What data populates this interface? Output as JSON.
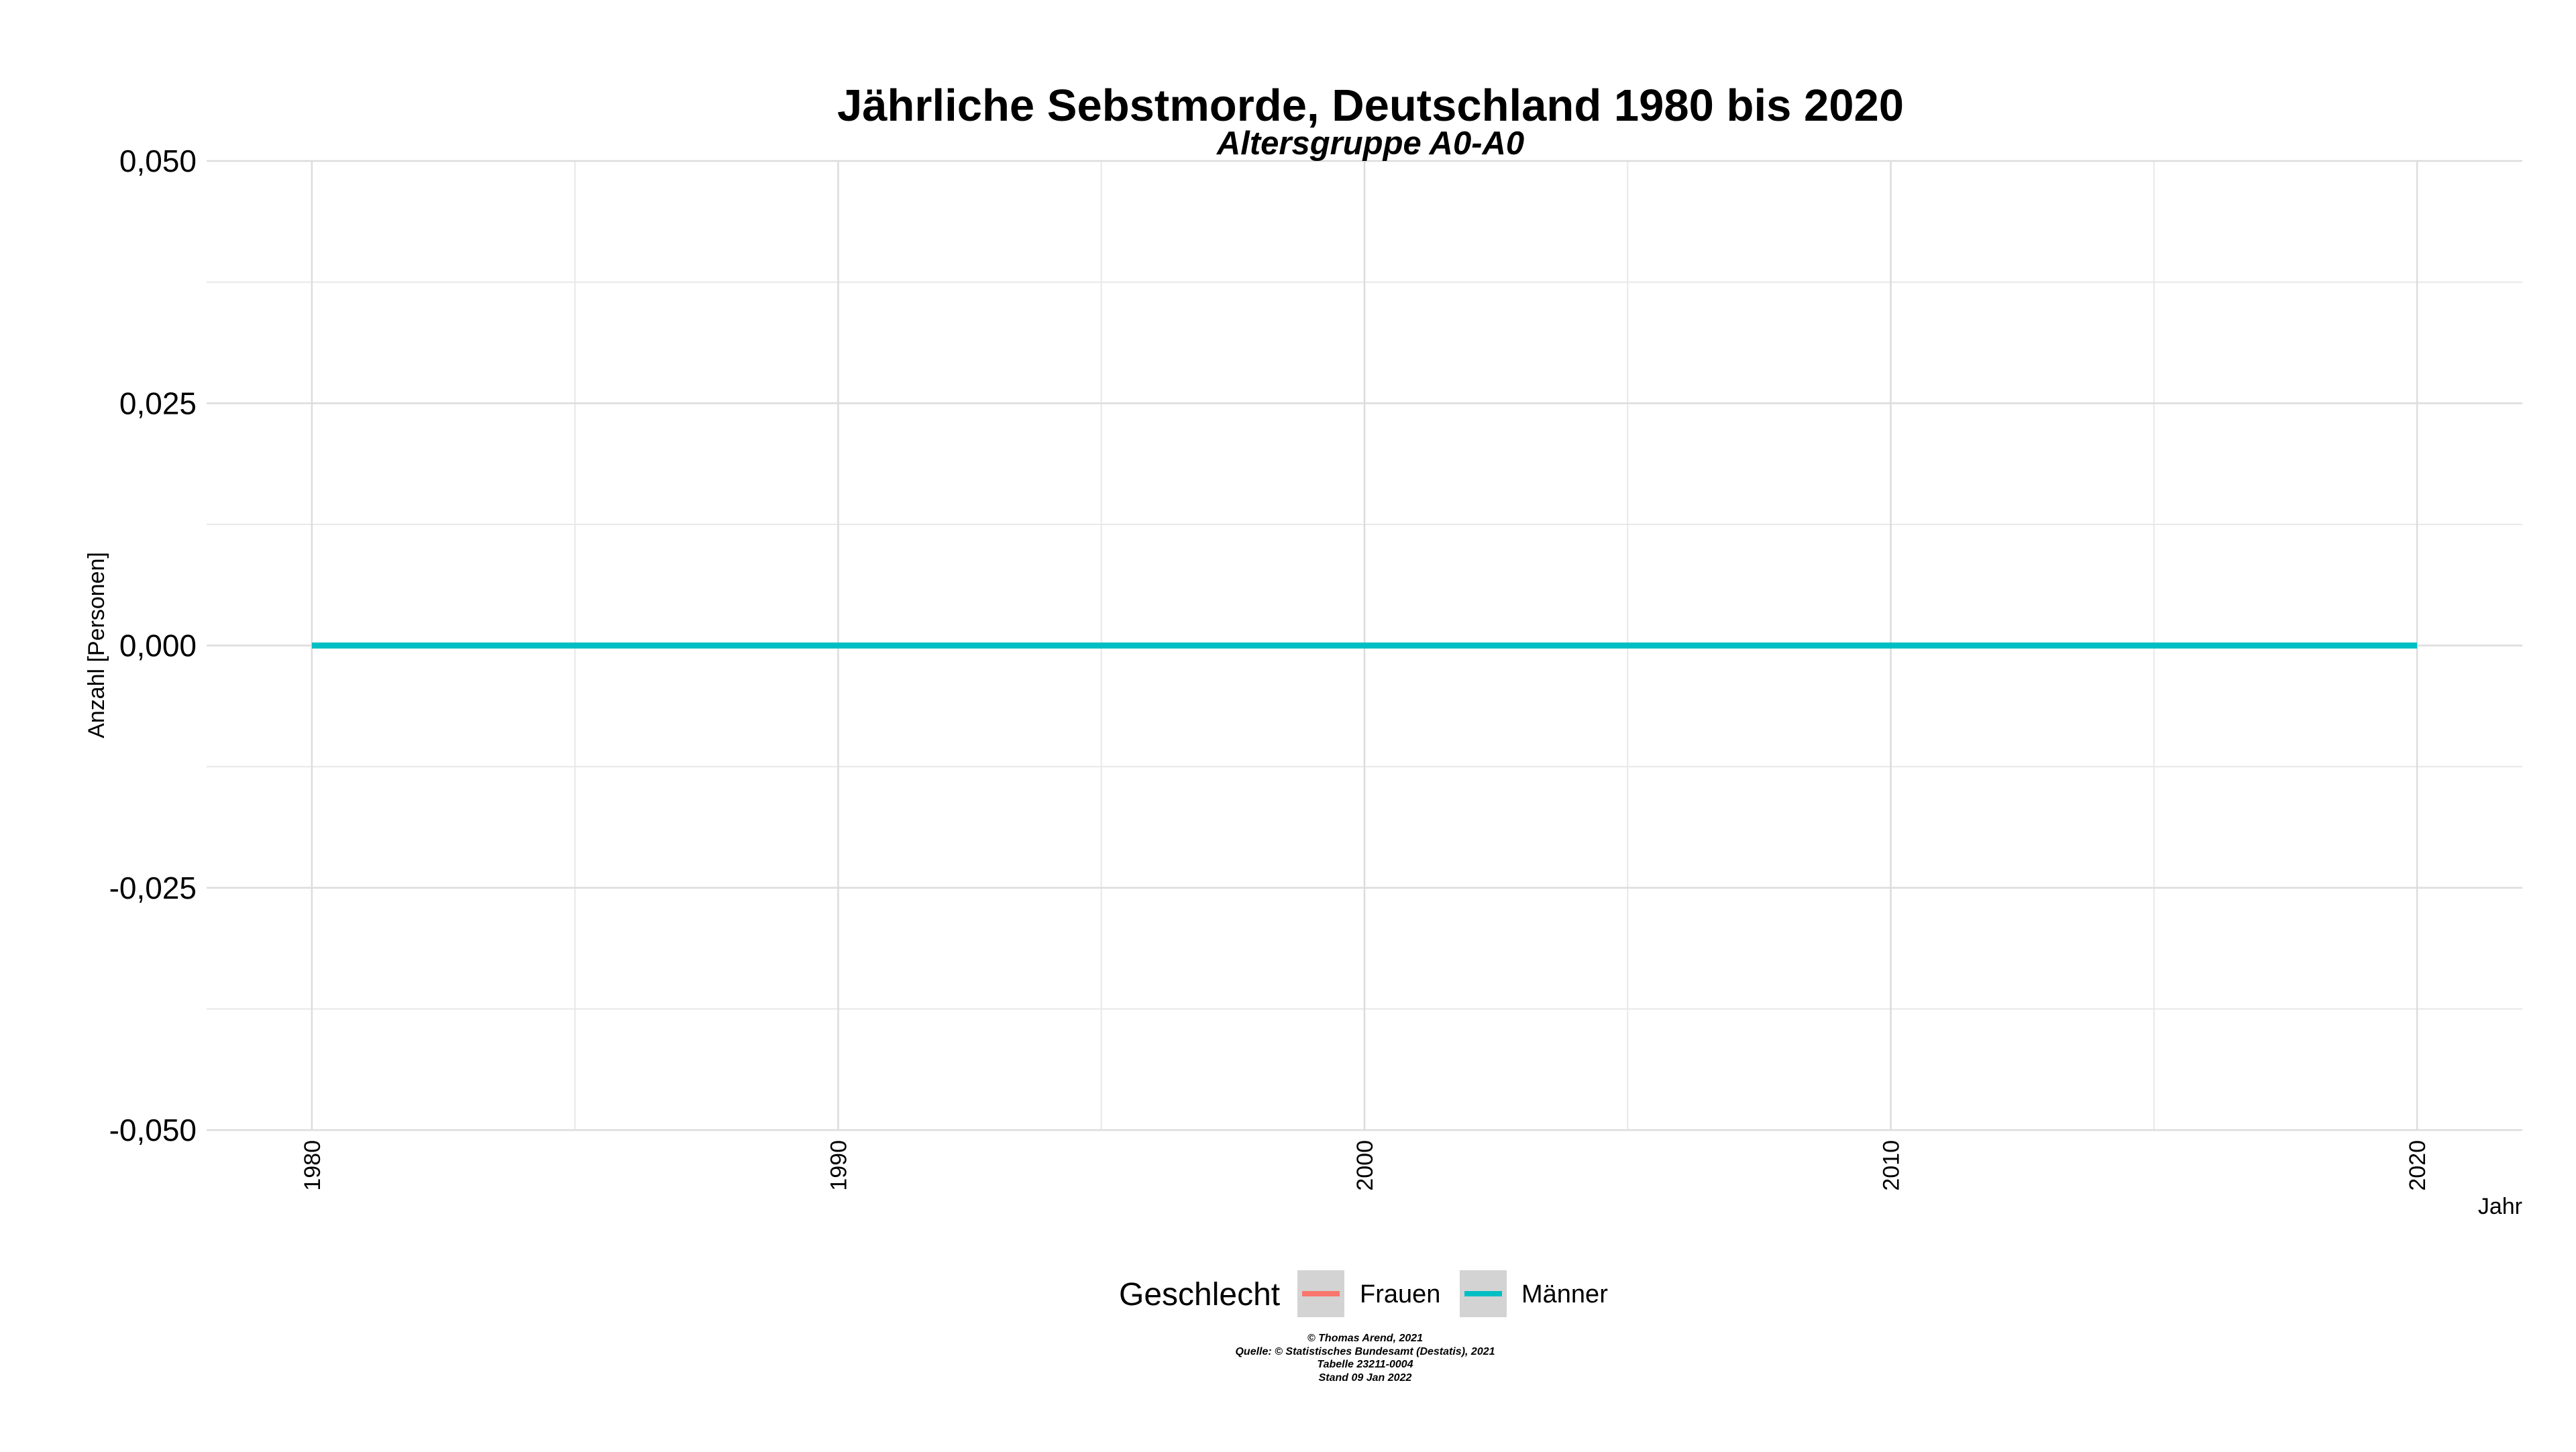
{
  "chart_data": {
    "type": "line",
    "title": "Jährliche Sebstmorde, Deutschland 1980 bis 2020",
    "subtitle": "Altersgruppe A0-A0",
    "xlabel": "Jahr",
    "ylabel": "Anzahl [Personen]",
    "xlim": [
      1978,
      2022
    ],
    "ylim": [
      -0.05,
      0.05
    ],
    "x_ticks": [
      1980,
      1990,
      2000,
      2010,
      2020
    ],
    "x_minor_ticks": [
      1985,
      1995,
      2005,
      2015
    ],
    "x_tick_labels": [
      "1980",
      "1990",
      "2000",
      "2010",
      "2020"
    ],
    "y_ticks": [
      -0.05,
      -0.025,
      0,
      0.025,
      0.05
    ],
    "y_minor_ticks": [
      -0.0375,
      -0.0125,
      0.0125,
      0.0375
    ],
    "y_tick_labels": [
      "-0,050",
      "-0,025",
      "0,000",
      "0,025",
      "0,050"
    ],
    "grid": true,
    "legend": {
      "title": "Geschlecht",
      "position": "bottom",
      "entries": [
        "Frauen",
        "Männer"
      ]
    },
    "series": [
      {
        "name": "Frauen",
        "color": "#F8766D",
        "x": [
          1980,
          1981,
          1982,
          1983,
          1984,
          1985,
          1986,
          1987,
          1988,
          1989,
          1990,
          1991,
          1992,
          1993,
          1994,
          1995,
          1996,
          1997,
          1998,
          1999,
          2000,
          2001,
          2002,
          2003,
          2004,
          2005,
          2006,
          2007,
          2008,
          2009,
          2010,
          2011,
          2012,
          2013,
          2014,
          2015,
          2016,
          2017,
          2018,
          2019,
          2020
        ],
        "values": [
          0,
          0,
          0,
          0,
          0,
          0,
          0,
          0,
          0,
          0,
          0,
          0,
          0,
          0,
          0,
          0,
          0,
          0,
          0,
          0,
          0,
          0,
          0,
          0,
          0,
          0,
          0,
          0,
          0,
          0,
          0,
          0,
          0,
          0,
          0,
          0,
          0,
          0,
          0,
          0,
          0
        ]
      },
      {
        "name": "Männer",
        "color": "#00BFC4",
        "x": [
          1980,
          1981,
          1982,
          1983,
          1984,
          1985,
          1986,
          1987,
          1988,
          1989,
          1990,
          1991,
          1992,
          1993,
          1994,
          1995,
          1996,
          1997,
          1998,
          1999,
          2000,
          2001,
          2002,
          2003,
          2004,
          2005,
          2006,
          2007,
          2008,
          2009,
          2010,
          2011,
          2012,
          2013,
          2014,
          2015,
          2016,
          2017,
          2018,
          2019,
          2020
        ],
        "values": [
          0,
          0,
          0,
          0,
          0,
          0,
          0,
          0,
          0,
          0,
          0,
          0,
          0,
          0,
          0,
          0,
          0,
          0,
          0,
          0,
          0,
          0,
          0,
          0,
          0,
          0,
          0,
          0,
          0,
          0,
          0,
          0,
          0,
          0,
          0,
          0,
          0,
          0,
          0,
          0,
          0
        ]
      }
    ],
    "caption": [
      "© Thomas Arend, 2021",
      "Quelle: © Statistisches Bundesamt (Destatis), 2021",
      "Tabelle 23211-0004",
      "Stand 09 Jan 2022"
    ],
    "colors": {
      "legend_key_background": "#D3D3D3",
      "grid": "#DCDCDC"
    }
  }
}
